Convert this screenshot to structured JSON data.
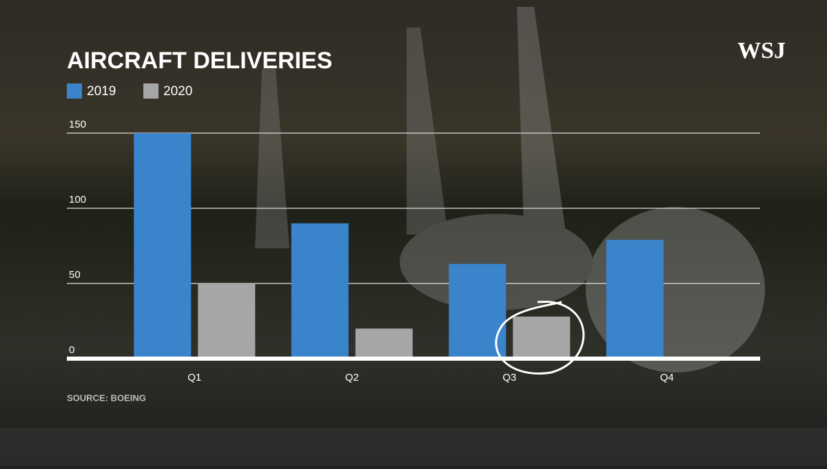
{
  "chart_data": {
    "type": "bar",
    "title": "AIRCRAFT DELIVERIES",
    "brand": "WSJ",
    "source": "SOURCE: BOEING",
    "categories": [
      "Q1",
      "Q2",
      "Q3",
      "Q4"
    ],
    "series": [
      {
        "name": "2019",
        "color": "#3a84cc",
        "values": [
          150,
          90,
          63,
          79
        ]
      },
      {
        "name": "2020",
        "color": "#a6a6a6",
        "values": [
          50,
          20,
          28,
          null
        ]
      }
    ],
    "ylim": [
      0,
      150
    ],
    "yticks": [
      0,
      50,
      100,
      150
    ],
    "grid": true
  }
}
